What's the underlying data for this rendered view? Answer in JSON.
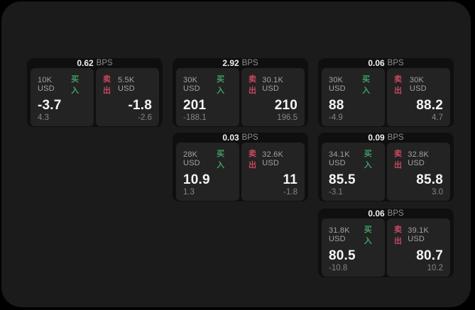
{
  "labels": {
    "bps": "BPS",
    "buy": "买入",
    "sell": "卖出"
  },
  "colors": {
    "background": "#000000",
    "panel": "#1b1b1b",
    "card": "#0f0f0f",
    "tile": "#232323",
    "buy": "#41a065",
    "sell": "#c8485f"
  },
  "cards": [
    {
      "bps": "0.62",
      "buy": {
        "notional": "10K USD",
        "price": "-3.7",
        "delta": "4.3"
      },
      "sell": {
        "notional": "5.5K USD",
        "price": "-1.8",
        "delta": "-2.6"
      }
    },
    {
      "bps": "2.92",
      "buy": {
        "notional": "30K USD",
        "price": "201",
        "delta": "-188.1"
      },
      "sell": {
        "notional": "30.1K USD",
        "price": "210",
        "delta": "196.5"
      }
    },
    {
      "bps": "0.06",
      "buy": {
        "notional": "30K USD",
        "price": "88",
        "delta": "-4.9"
      },
      "sell": {
        "notional": "30K USD",
        "price": "88.2",
        "delta": "4.7"
      }
    },
    {
      "bps": "0.03",
      "buy": {
        "notional": "28K USD",
        "price": "10.9",
        "delta": "1.3"
      },
      "sell": {
        "notional": "32.6K USD",
        "price": "11",
        "delta": "-1.8"
      }
    },
    {
      "bps": "0.09",
      "buy": {
        "notional": "34.1K USD",
        "price": "85.5",
        "delta": "-3.1"
      },
      "sell": {
        "notional": "32.8K USD",
        "price": "85.8",
        "delta": "3.0"
      }
    },
    {
      "bps": "0.06",
      "buy": {
        "notional": "31.8K USD",
        "price": "80.5",
        "delta": "-10.8"
      },
      "sell": {
        "notional": "39.1K USD",
        "price": "80.7",
        "delta": "10.2"
      }
    }
  ]
}
